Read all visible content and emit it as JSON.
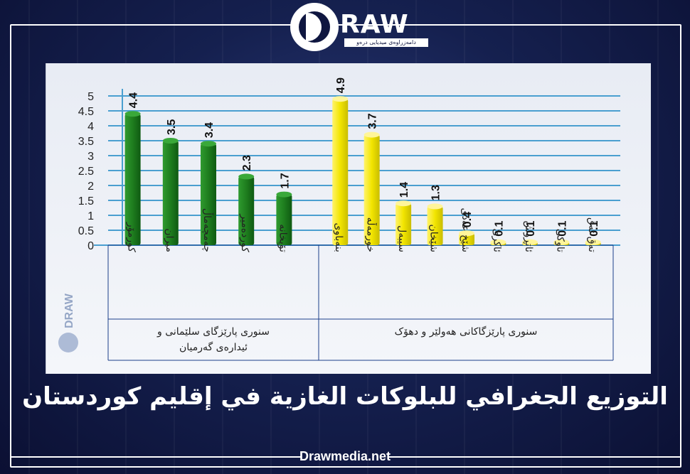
{
  "brand": {
    "logo_word": "RAW",
    "logo_tagline": "دامەزراوەی میدیایی درەو",
    "watermark_word": "DRAW",
    "site": "Drawmedia.net"
  },
  "headline": "التوزيع الجغرافي للبلوكات الغازية في إقليم كوردستان",
  "colors": {
    "green": "#1e7d1e",
    "yellow": "#f2e500",
    "grid": "#4a9fd0",
    "text": "#222222"
  },
  "chart_data": {
    "type": "bar",
    "ylim": [
      0,
      5
    ],
    "yticks": [
      "5",
      "4.5",
      "4",
      "3.5",
      "3",
      "2.5",
      "2",
      "1.5",
      "1",
      "0.5",
      "0"
    ],
    "grid": true,
    "groups": [
      {
        "name": "سنوری پارێزگای سلێمانی و ئیدارەی گەرمیان",
        "name_lines": [
          "سنوری پارێزگای سلێمانی و",
          "ئیدارەی گەرمیان"
        ],
        "color": "#1e7d1e",
        "categories": [
          "کورمۆر",
          "میران",
          "چەمچەماڵ",
          "کوردەمیر",
          "تۆپخانە"
        ],
        "values": [
          4.4,
          3.5,
          3.4,
          2.3,
          1.7
        ],
        "labels": [
          "4.4",
          "3.5",
          "3.4",
          "2.3",
          "1.7"
        ]
      },
      {
        "name": "سنوری پارێزگاکانی هەولێر و دهۆک",
        "name_lines": [
          "سنوری پارێزگاکانی هەولێر و دهۆک"
        ],
        "color": "#f2e500",
        "categories": [
          "بنەباوی",
          "خورمەڵە",
          "سیبەل",
          "شێخان",
          "شێخ عەدی",
          "ئاکرێ",
          "ئاتڕوش",
          "تاوکی",
          "تەق تەق"
        ],
        "values": [
          4.9,
          3.7,
          1.4,
          1.3,
          0.4,
          0.1,
          0.1,
          0.1,
          0.1
        ],
        "labels": [
          "4.9",
          "3.7",
          "1.4",
          "1.3",
          "0.4",
          "0.1",
          "0.1",
          "0.1",
          "0.1"
        ]
      }
    ]
  }
}
